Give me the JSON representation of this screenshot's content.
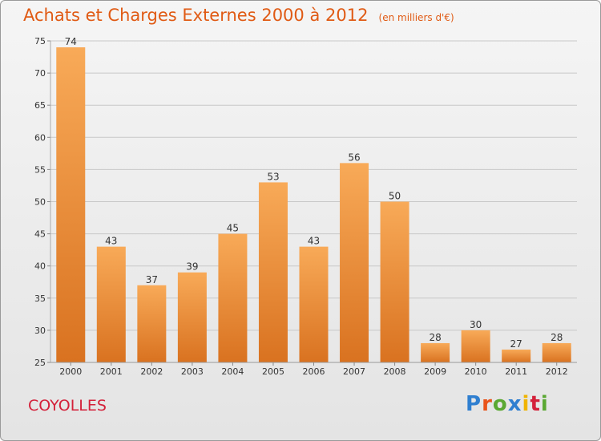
{
  "header": {
    "title": "Achats et Charges Externes 2000 à 2012",
    "unit": "(en milliers d'€)"
  },
  "footer": {
    "commune": "COYOLLES",
    "brand": "Proxiti",
    "brand_colors": [
      "#2f7fd0",
      "#e9541a",
      "#5aa832",
      "#2f7fd0",
      "#f0b400",
      "#d4213a",
      "#5aa832"
    ]
  },
  "colors": {
    "bar_top": "#f8aa58",
    "bar_bottom": "#d97220",
    "grid": "#c8c8c8",
    "axis_text": "#333333"
  },
  "chart_data": {
    "type": "bar",
    "title": "Achats et Charges Externes 2000 à 2012",
    "subtitle": "(en milliers d'€)",
    "categories": [
      "2000",
      "2001",
      "2002",
      "2003",
      "2004",
      "2005",
      "2006",
      "2007",
      "2008",
      "2009",
      "2010",
      "2011",
      "2012"
    ],
    "values": [
      74,
      43,
      37,
      39,
      45,
      53,
      43,
      56,
      50,
      28,
      30,
      27,
      28
    ],
    "ylim": [
      25,
      75
    ],
    "yticks": [
      25,
      30,
      35,
      40,
      45,
      50,
      55,
      60,
      65,
      70,
      75
    ],
    "grid": true,
    "data_labels": true
  }
}
